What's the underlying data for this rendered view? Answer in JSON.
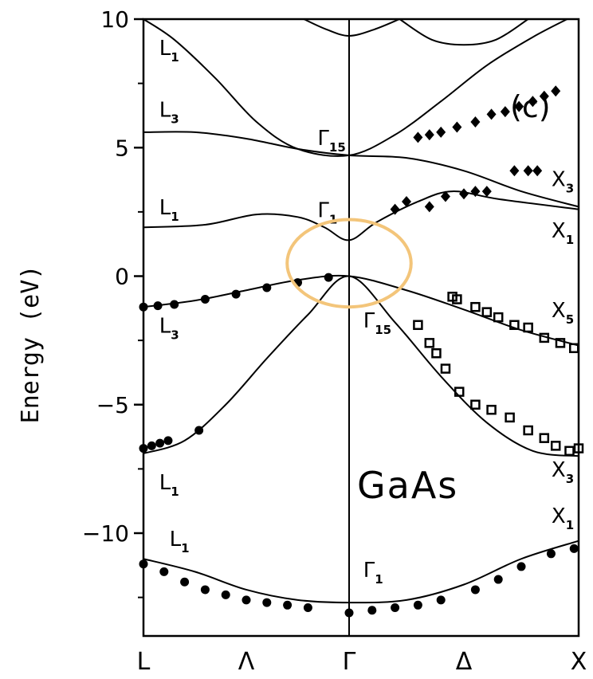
{
  "chart_data": {
    "type": "line",
    "title": "",
    "ylabel": "Energy (eV)",
    "xlabel": "",
    "ylim": [
      -14,
      10
    ],
    "yticks": [
      10,
      5,
      0,
      -5,
      -10
    ],
    "xticks": [
      "L",
      "Λ",
      "Γ",
      "Δ",
      "X"
    ],
    "material": "GaAs",
    "panel": "(c)",
    "band_labels": [
      {
        "text": "L",
        "sub": "1",
        "x": -0.97,
        "y": 8.6
      },
      {
        "text": "L",
        "sub": "3",
        "x": -0.97,
        "y": 6.2
      },
      {
        "text": "L",
        "sub": "1",
        "x": -0.97,
        "y": 2.4
      },
      {
        "text": "L",
        "sub": "3",
        "x": -0.97,
        "y": -2.2
      },
      {
        "text": "L",
        "sub": "1",
        "x": -0.97,
        "y": -8.3
      },
      {
        "text": "L",
        "sub": "1",
        "x": -0.92,
        "y": -10.5
      },
      {
        "text": "Γ",
        "sub": "15",
        "x": -0.2,
        "y": 5.1
      },
      {
        "text": "Γ",
        "sub": "1",
        "x": -0.2,
        "y": 2.3
      },
      {
        "text": "Γ",
        "sub": "15",
        "x": 0.02,
        "y": -2.0
      },
      {
        "text": "Γ",
        "sub": "1",
        "x": 0.02,
        "y": -11.7
      },
      {
        "text": "X",
        "sub": "3",
        "x": 0.84,
        "y": 3.5
      },
      {
        "text": "X",
        "sub": "1",
        "x": 0.84,
        "y": 1.5
      },
      {
        "text": "X",
        "sub": "5",
        "x": 0.84,
        "y": -1.6
      },
      {
        "text": "X",
        "sub": "3",
        "x": 0.84,
        "y": -7.8
      },
      {
        "text": "X",
        "sub": "1",
        "x": 0.84,
        "y": -9.6
      }
    ],
    "series": [
      {
        "values": [
          [
            -1,
            -11.0
          ],
          [
            -0.75,
            -11.5
          ],
          [
            -0.5,
            -12.2
          ],
          [
            -0.25,
            -12.6
          ],
          [
            0,
            -12.7
          ],
          [
            0.25,
            -12.6
          ],
          [
            0.5,
            -12.0
          ],
          [
            0.75,
            -11.0
          ],
          [
            1,
            -10.3
          ]
        ]
      },
      {
        "values": [
          [
            -1,
            -6.9
          ],
          [
            -0.8,
            -6.4
          ],
          [
            -0.6,
            -5.0
          ],
          [
            -0.4,
            -3.2
          ],
          [
            -0.2,
            -1.5
          ],
          [
            0,
            0.0
          ],
          [
            0.2,
            -1.8
          ],
          [
            0.4,
            -3.9
          ],
          [
            0.6,
            -5.7
          ],
          [
            0.8,
            -6.8
          ],
          [
            1,
            -7.0
          ]
        ]
      },
      {
        "values": [
          [
            -1,
            -1.2
          ],
          [
            -0.75,
            -0.95
          ],
          [
            -0.5,
            -0.55
          ],
          [
            -0.25,
            -0.15
          ],
          [
            0,
            0.0
          ],
          [
            0.25,
            -0.55
          ],
          [
            0.5,
            -1.3
          ],
          [
            0.75,
            -2.1
          ],
          [
            1,
            -2.7
          ]
        ]
      },
      {
        "values": [
          [
            -1,
            1.9
          ],
          [
            -0.7,
            2.0
          ],
          [
            -0.45,
            2.4
          ],
          [
            -0.25,
            2.3
          ],
          [
            -0.12,
            1.9
          ],
          [
            0,
            1.4
          ],
          [
            0.12,
            2.1
          ],
          [
            0.3,
            2.9
          ],
          [
            0.45,
            3.3
          ],
          [
            0.65,
            3.0
          ],
          [
            1,
            2.6
          ]
        ]
      },
      {
        "values": [
          [
            -1,
            5.6
          ],
          [
            -0.75,
            5.6
          ],
          [
            -0.5,
            5.35
          ],
          [
            -0.25,
            4.95
          ],
          [
            0,
            4.7
          ],
          [
            0.25,
            4.6
          ],
          [
            0.5,
            4.1
          ],
          [
            0.75,
            3.3
          ],
          [
            1,
            2.7
          ]
        ]
      },
      {
        "values": [
          [
            -1,
            10.0
          ],
          [
            -0.85,
            9.2
          ],
          [
            -0.65,
            7.7
          ],
          [
            -0.45,
            6.0
          ],
          [
            -0.25,
            4.95
          ],
          [
            0,
            4.7
          ],
          [
            0.2,
            5.5
          ],
          [
            0.4,
            6.8
          ],
          [
            0.6,
            8.2
          ],
          [
            0.8,
            9.3
          ],
          [
            0.95,
            10.0
          ]
        ]
      },
      {
        "values": [
          [
            -0.22,
            10.0
          ],
          [
            -0.11,
            9.6
          ],
          [
            0,
            9.35
          ],
          [
            0.11,
            9.6
          ],
          [
            0.22,
            10.0
          ]
        ]
      },
      {
        "values": [
          [
            0.22,
            10.0
          ],
          [
            0.36,
            9.2
          ],
          [
            0.5,
            9.0
          ],
          [
            0.64,
            9.2
          ],
          [
            0.78,
            10.0
          ]
        ]
      }
    ],
    "experimental_points": [
      {
        "marker": "dot",
        "points": [
          [
            -1,
            -11.2
          ],
          [
            -0.9,
            -11.5
          ],
          [
            -0.8,
            -11.9
          ],
          [
            -0.7,
            -12.2
          ],
          [
            -0.6,
            -12.4
          ],
          [
            -0.5,
            -12.6
          ],
          [
            -0.4,
            -12.7
          ],
          [
            -0.3,
            -12.8
          ],
          [
            -0.2,
            -12.9
          ],
          [
            0,
            -13.1
          ],
          [
            0.1,
            -13.0
          ],
          [
            0.2,
            -12.9
          ],
          [
            0.3,
            -12.8
          ],
          [
            0.4,
            -12.6
          ],
          [
            0.55,
            -12.2
          ],
          [
            0.65,
            -11.8
          ],
          [
            0.75,
            -11.3
          ],
          [
            0.88,
            -10.8
          ],
          [
            0.98,
            -10.6
          ]
        ]
      },
      {
        "marker": "dot",
        "points": [
          [
            -1,
            -6.7
          ],
          [
            -0.96,
            -6.6
          ],
          [
            -0.92,
            -6.5
          ],
          [
            -0.88,
            -6.4
          ],
          [
            -0.73,
            -6.0
          ]
        ]
      },
      {
        "marker": "dot",
        "points": [
          [
            -1,
            -1.2
          ],
          [
            -0.93,
            -1.15
          ],
          [
            -0.85,
            -1.1
          ],
          [
            -0.7,
            -0.9
          ],
          [
            -0.55,
            -0.7
          ],
          [
            -0.4,
            -0.45
          ],
          [
            -0.25,
            -0.25
          ],
          [
            -0.1,
            -0.05
          ]
        ]
      },
      {
        "marker": "diamond",
        "points": [
          [
            0.2,
            2.6
          ],
          [
            0.25,
            2.9
          ],
          [
            0.35,
            2.7
          ],
          [
            0.42,
            3.1
          ],
          [
            0.5,
            3.2
          ],
          [
            0.55,
            3.3
          ],
          [
            0.6,
            3.3
          ],
          [
            0.72,
            4.1
          ],
          [
            0.78,
            4.1
          ],
          [
            0.82,
            4.1
          ],
          [
            0.3,
            5.4
          ],
          [
            0.35,
            5.5
          ],
          [
            0.4,
            5.6
          ],
          [
            0.47,
            5.8
          ],
          [
            0.55,
            6.0
          ],
          [
            0.62,
            6.3
          ],
          [
            0.68,
            6.4
          ],
          [
            0.74,
            6.6
          ],
          [
            0.8,
            6.8
          ],
          [
            0.85,
            7.0
          ],
          [
            0.9,
            7.2
          ]
        ]
      },
      {
        "marker": "square",
        "points": [
          [
            0.45,
            -0.8
          ],
          [
            0.47,
            -0.9
          ],
          [
            0.55,
            -1.2
          ],
          [
            0.6,
            -1.4
          ],
          [
            0.65,
            -1.6
          ],
          [
            0.72,
            -1.9
          ],
          [
            0.78,
            -2.0
          ],
          [
            0.85,
            -2.4
          ],
          [
            0.92,
            -2.6
          ],
          [
            0.98,
            -2.8
          ],
          [
            0.3,
            -1.9
          ],
          [
            0.35,
            -2.6
          ],
          [
            0.38,
            -3.0
          ],
          [
            0.42,
            -3.6
          ],
          [
            0.48,
            -4.5
          ],
          [
            0.55,
            -5.0
          ],
          [
            0.62,
            -5.2
          ],
          [
            0.7,
            -5.5
          ],
          [
            0.78,
            -6.0
          ],
          [
            0.85,
            -6.3
          ],
          [
            0.9,
            -6.6
          ],
          [
            0.96,
            -6.8
          ],
          [
            1.0,
            -6.7
          ]
        ]
      }
    ],
    "highlight": {
      "shape": "ellipse",
      "color": "#f3c57a",
      "center": [
        0.0,
        0.5
      ],
      "rx": 0.27,
      "ry": 1.7
    }
  }
}
